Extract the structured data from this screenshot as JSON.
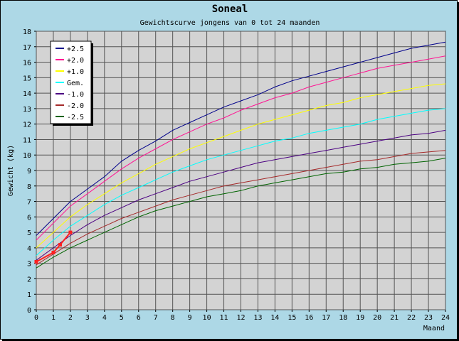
{
  "chart_data": {
    "type": "line",
    "title": "Soneal",
    "subtitle": "Gewichtscurve jongens van 0 tot 24 maanden",
    "xlabel": "Maand",
    "ylabel": "Gewicht (kg)",
    "xlim": [
      0,
      24
    ],
    "ylim": [
      0,
      18
    ],
    "xticks": [
      "0",
      "1",
      "2",
      "3",
      "4",
      "5",
      "6",
      "7",
      "8",
      "9",
      "10",
      "11",
      "12",
      "13",
      "14",
      "15",
      "16",
      "17",
      "18",
      "19",
      "20",
      "21",
      "22",
      "23",
      "24"
    ],
    "yticks": [
      "0",
      "1",
      "2",
      "3",
      "4",
      "5",
      "6",
      "7",
      "8",
      "9",
      "10",
      "11",
      "12",
      "13",
      "14",
      "15",
      "16",
      "17",
      "18"
    ],
    "grid": true,
    "legend_position": "top-left",
    "background_plot": "#d3d3d3",
    "background_frame": "#add8e6",
    "x": [
      0,
      1,
      2,
      3,
      4,
      5,
      6,
      7,
      8,
      9,
      10,
      11,
      12,
      13,
      14,
      15,
      16,
      17,
      18,
      19,
      20,
      21,
      22,
      23,
      24
    ],
    "series": [
      {
        "name": "+2.5",
        "color": "#00008b",
        "values": [
          4.8,
          5.9,
          7.0,
          7.8,
          8.6,
          9.6,
          10.3,
          10.9,
          11.6,
          12.1,
          12.6,
          13.1,
          13.5,
          13.9,
          14.4,
          14.8,
          15.1,
          15.4,
          15.7,
          16.0,
          16.3,
          16.6,
          16.9,
          17.1,
          17.3
        ]
      },
      {
        "name": "+2.0",
        "color": "#ff1493",
        "values": [
          4.5,
          5.6,
          6.7,
          7.5,
          8.3,
          9.1,
          9.8,
          10.4,
          11.0,
          11.5,
          12.0,
          12.4,
          12.9,
          13.3,
          13.7,
          14.0,
          14.4,
          14.7,
          15.0,
          15.3,
          15.6,
          15.8,
          16.0,
          16.2,
          16.4
        ]
      },
      {
        "name": "+1.0",
        "color": "#ffff00",
        "values": [
          4.0,
          5.0,
          6.0,
          6.8,
          7.5,
          8.2,
          8.8,
          9.4,
          9.9,
          10.4,
          10.8,
          11.2,
          11.6,
          12.0,
          12.3,
          12.6,
          12.9,
          13.2,
          13.4,
          13.7,
          13.9,
          14.1,
          14.3,
          14.5,
          14.6
        ]
      },
      {
        "name": "Gem.",
        "color": "#00ffff",
        "values": [
          3.5,
          4.5,
          5.4,
          6.1,
          6.8,
          7.4,
          7.9,
          8.4,
          8.9,
          9.3,
          9.7,
          10.0,
          10.3,
          10.6,
          10.9,
          11.1,
          11.4,
          11.6,
          11.8,
          12.0,
          12.3,
          12.5,
          12.7,
          12.9,
          13.0
        ]
      },
      {
        "name": "-1.0",
        "color": "#4b0082",
        "values": [
          3.2,
          4.0,
          4.8,
          5.5,
          6.1,
          6.6,
          7.1,
          7.5,
          7.9,
          8.3,
          8.6,
          8.9,
          9.2,
          9.5,
          9.7,
          9.9,
          10.1,
          10.3,
          10.5,
          10.7,
          10.9,
          11.1,
          11.3,
          11.4,
          11.6
        ]
      },
      {
        "name": "-2.0",
        "color": "#a52a2a",
        "values": [
          2.9,
          3.6,
          4.3,
          4.9,
          5.4,
          5.9,
          6.3,
          6.7,
          7.1,
          7.4,
          7.7,
          8.0,
          8.2,
          8.4,
          8.6,
          8.8,
          9.0,
          9.2,
          9.4,
          9.6,
          9.7,
          9.9,
          10.1,
          10.2,
          10.3
        ]
      },
      {
        "name": "-2.5",
        "color": "#006400",
        "values": [
          2.7,
          3.4,
          4.0,
          4.5,
          5.0,
          5.5,
          6.0,
          6.4,
          6.7,
          7.0,
          7.3,
          7.5,
          7.7,
          8.0,
          8.2,
          8.4,
          8.6,
          8.8,
          8.9,
          9.1,
          9.2,
          9.4,
          9.5,
          9.6,
          9.8
        ]
      }
    ],
    "measurements": {
      "color": "#ff2020",
      "points": [
        {
          "x": 0,
          "y": 3.1
        },
        {
          "x": 1,
          "y": 3.7
        },
        {
          "x": 1.4,
          "y": 4.2
        },
        {
          "x": 2,
          "y": 5.0
        }
      ]
    }
  }
}
